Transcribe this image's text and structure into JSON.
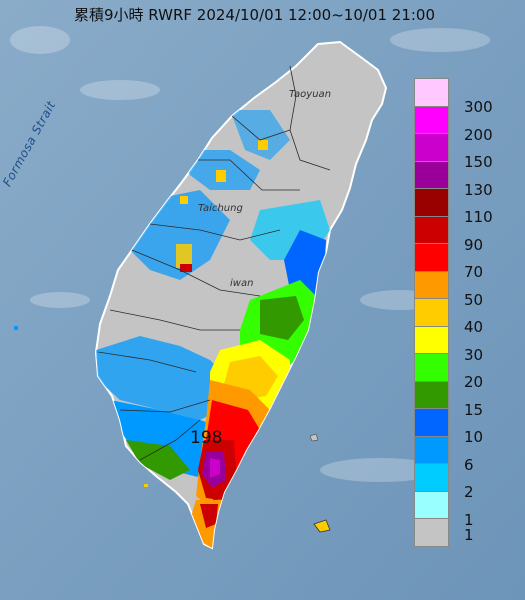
{
  "title": "累積9小時 RWRF 2024/10/01 12:00~10/01 21:00",
  "max_value_label": "198",
  "labels": {
    "strait": "Formosa Strait",
    "taoyuan": "Taoyuan",
    "taichung": "Taichung",
    "taiwan": "iwan"
  },
  "colors": {
    "sea": "#7fa3c2",
    "land_no_rain": "#c4c4c4",
    "coastline": "#ffffff"
  },
  "legend": {
    "items": [
      {
        "label": "300",
        "color": "#ffc8ff"
      },
      {
        "label": "200",
        "color": "#ff00ff"
      },
      {
        "label": "150",
        "color": "#cc00cc"
      },
      {
        "label": "130",
        "color": "#990099"
      },
      {
        "label": "110",
        "color": "#990000"
      },
      {
        "label": "90",
        "color": "#cc0000"
      },
      {
        "label": "70",
        "color": "#ff0000"
      },
      {
        "label": "50",
        "color": "#ff9900"
      },
      {
        "label": "40",
        "color": "#ffcc00"
      },
      {
        "label": "30",
        "color": "#ffff00"
      },
      {
        "label": "20",
        "color": "#33ff00"
      },
      {
        "label": "15",
        "color": "#339900"
      },
      {
        "label": "10",
        "color": "#0066ff"
      },
      {
        "label": "6",
        "color": "#0099ff"
      },
      {
        "label": "2",
        "color": "#00ccff"
      },
      {
        "label": "1",
        "color": "#99ffff"
      },
      {
        "label": "",
        "color": "#c4c4c4"
      }
    ],
    "bottom_label": "1"
  }
}
